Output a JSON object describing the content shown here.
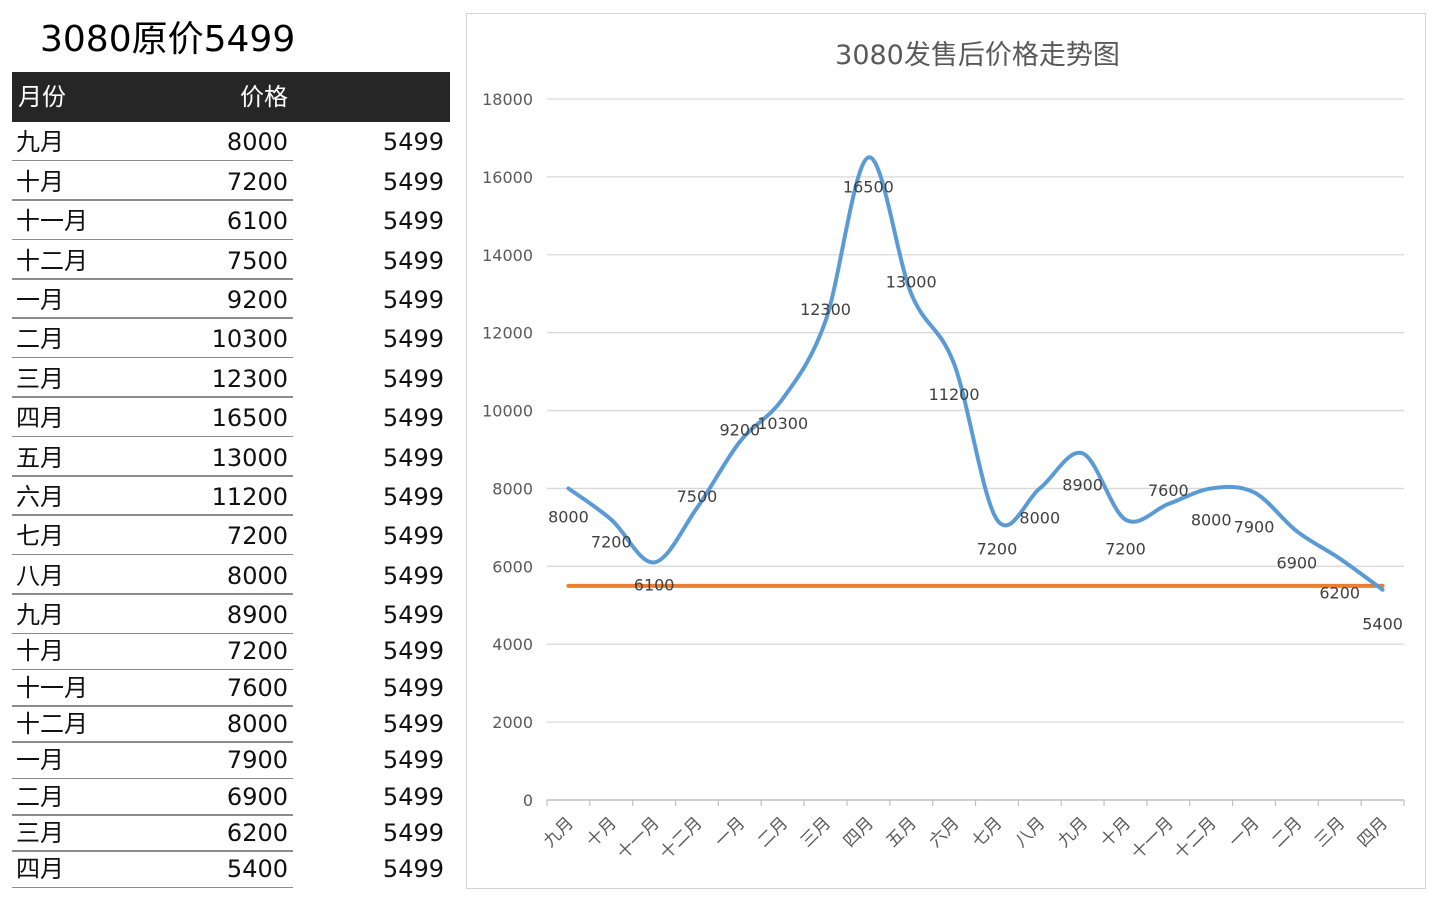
{
  "sheet": {
    "title": "3080原价5499",
    "headers": {
      "month": "月份",
      "price": "价格"
    },
    "rows": [
      {
        "month": "九月",
        "price": "8000",
        "original": "5499"
      },
      {
        "month": "十月",
        "price": "7200",
        "original": "5499"
      },
      {
        "month": "十一月",
        "price": "6100",
        "original": "5499"
      },
      {
        "month": "十二月",
        "price": "7500",
        "original": "5499"
      },
      {
        "month": "一月",
        "price": "9200",
        "original": "5499"
      },
      {
        "month": "二月",
        "price": "10300",
        "original": "5499"
      },
      {
        "month": "三月",
        "price": "12300",
        "original": "5499"
      },
      {
        "month": "四月",
        "price": "16500",
        "original": "5499"
      },
      {
        "month": "五月",
        "price": "13000",
        "original": "5499"
      },
      {
        "month": "六月",
        "price": "11200",
        "original": "5499"
      },
      {
        "month": "七月",
        "price": "7200",
        "original": "5499"
      },
      {
        "month": "八月",
        "price": "8000",
        "original": "5499"
      },
      {
        "month": "九月",
        "price": "8900",
        "original": "5499"
      },
      {
        "month": "十月",
        "price": "7200",
        "original": "5499"
      },
      {
        "month": "十一月",
        "price": "7600",
        "original": "5499"
      },
      {
        "month": "十二月",
        "price": "8000",
        "original": "5499"
      },
      {
        "month": "一月",
        "price": "7900",
        "original": "5499"
      },
      {
        "month": "二月",
        "price": "6900",
        "original": "5499"
      },
      {
        "month": "三月",
        "price": "6200",
        "original": "5499"
      },
      {
        "month": "四月",
        "price": "5400",
        "original": "5499"
      }
    ]
  },
  "chart_data": {
    "type": "line",
    "title": "3080发售后价格走势图",
    "categories": [
      "九月",
      "十月",
      "十一月",
      "十二月",
      "一月",
      "二月",
      "三月",
      "四月",
      "五月",
      "六月",
      "七月",
      "八月",
      "九月",
      "十月",
      "十一月",
      "十二月",
      "一月",
      "二月",
      "三月",
      "四月"
    ],
    "series": [
      {
        "values": [
          8000,
          7200,
          6100,
          7500,
          9200,
          10300,
          12300,
          16500,
          13000,
          11200,
          7200,
          8000,
          8900,
          7200,
          7600,
          8000,
          7900,
          6900,
          6200,
          5400
        ],
        "color": "#5b9bd5",
        "smooth": true,
        "data_labels": true
      },
      {
        "values": [
          5499,
          5499,
          5499,
          5499,
          5499,
          5499,
          5499,
          5499,
          5499,
          5499,
          5499,
          5499,
          5499,
          5499,
          5499,
          5499,
          5499,
          5499,
          5499,
          5499
        ],
        "color": "#ed7d31",
        "smooth": false,
        "data_labels": false
      }
    ],
    "ylim": [
      0,
      18000
    ],
    "y_ticks": [
      0,
      2000,
      4000,
      6000,
      8000,
      10000,
      12000,
      14000,
      16000,
      18000
    ],
    "grid": true,
    "legend": "none",
    "xlabel": "",
    "ylabel": ""
  }
}
